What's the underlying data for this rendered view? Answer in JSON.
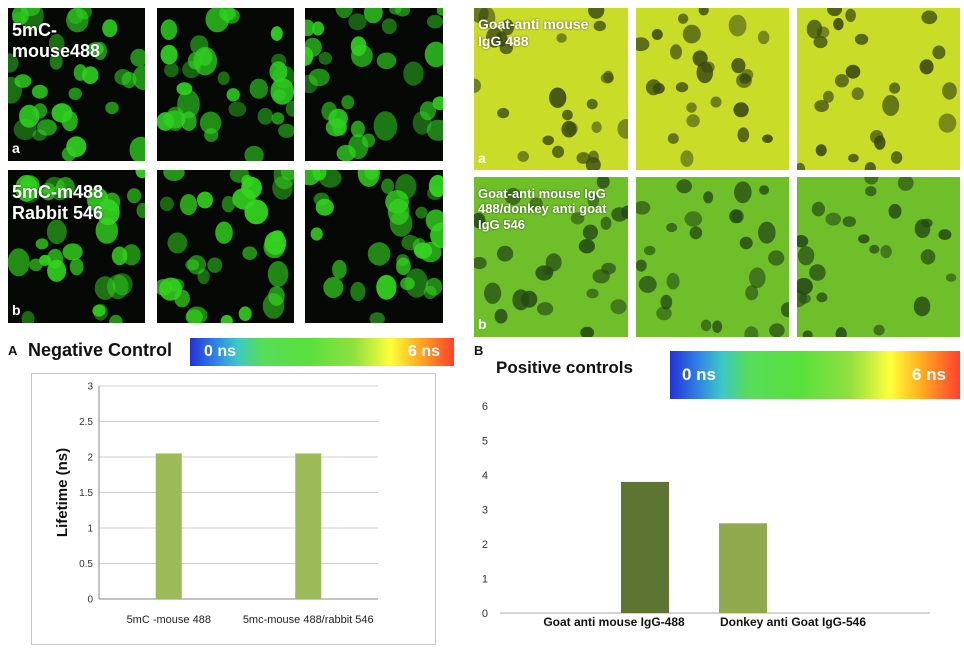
{
  "left_panel": {
    "images": {
      "row_a_label": "5mC-\nmouse488",
      "row_a_letter": "a",
      "row_b_label": "5mC-m488\nRabbit 546",
      "row_b_letter": "b",
      "row_a_color": "#2fd021",
      "row_b_color": "#34d41f"
    },
    "panel_letter": "A",
    "title": "Negative Control",
    "scale": {
      "min_label": "0 ns",
      "max_label": "6 ns"
    },
    "chart_data": {
      "type": "bar",
      "title": "",
      "xlabel": "",
      "ylabel": "Lifetime (ns)",
      "ylim": [
        0,
        3
      ],
      "yticks": [
        "0",
        "0.5",
        "1",
        "1.5",
        "2",
        "2.5",
        "3"
      ],
      "categories": [
        "5mC -mouse 488",
        "5mc-mouse 488/rabbit 546"
      ],
      "values": [
        2.05,
        2.05
      ],
      "bar_color": "#9bbb59",
      "grid": true
    }
  },
  "right_panel": {
    "images": {
      "row_a_label": "Goat-anti mouse\nIgG 488",
      "row_a_letter": "a",
      "row_b_label": "Goat-anti mouse IgG\n488/donkey anti goat\nIgG 546",
      "row_b_letter": "b",
      "row_a_color": "#c8dc28",
      "row_b_color": "#6fbf2a"
    },
    "panel_letter": "B",
    "title": "Positive controls",
    "scale": {
      "min_label": "0 ns",
      "max_label": "6 ns"
    },
    "chart_data": {
      "type": "bar",
      "title": "",
      "xlabel": "",
      "ylabel": "",
      "ylim": [
        0,
        6
      ],
      "yticks": [
        "0",
        "1",
        "2",
        "3",
        "4",
        "5",
        "6"
      ],
      "categories": [
        "Goat anti mouse IgG-488",
        "Donkey anti Goat IgG-546"
      ],
      "values": [
        3.8,
        2.6
      ],
      "bar_colors": [
        "#5e7432",
        "#8fa94c"
      ],
      "grid": false
    }
  }
}
